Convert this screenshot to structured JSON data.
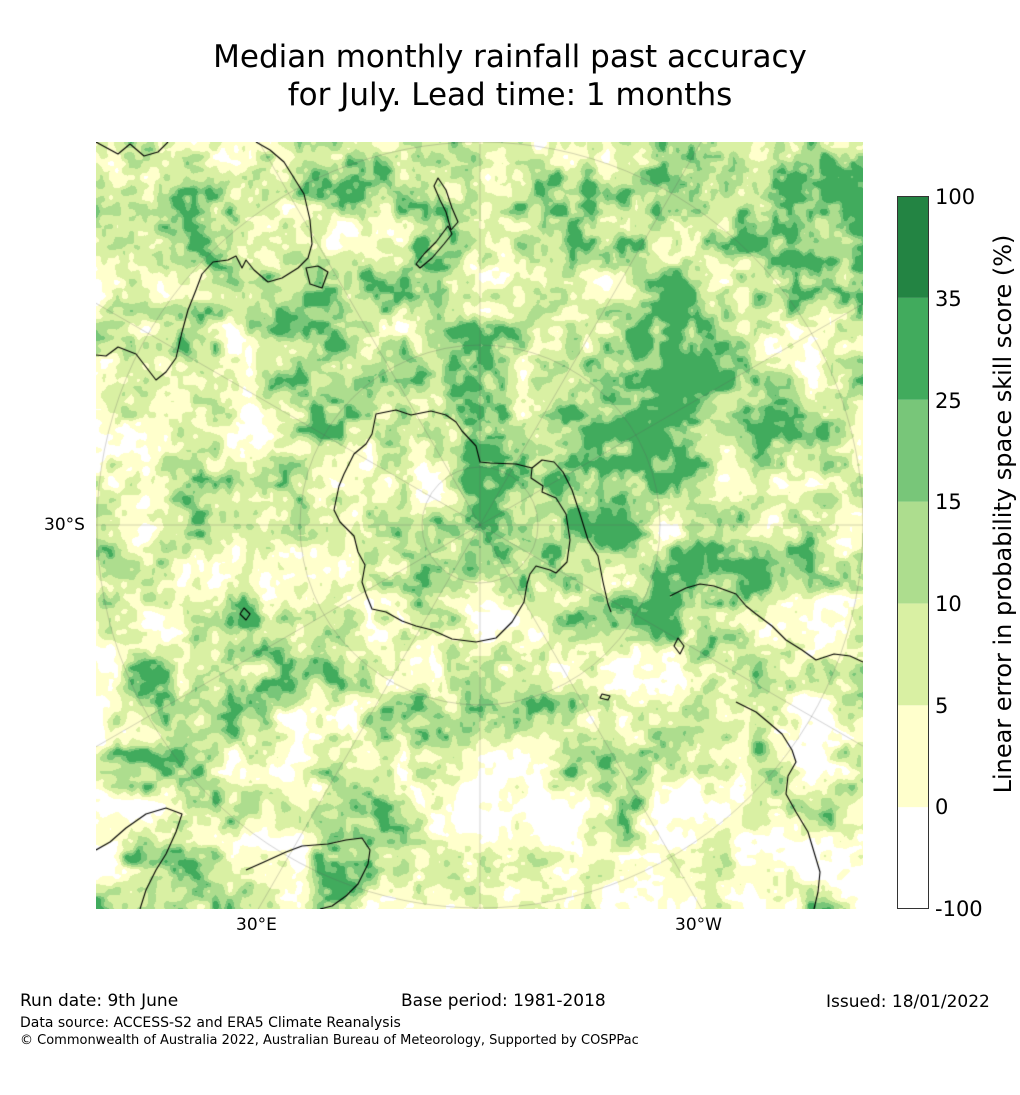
{
  "title": {
    "line1": "Median monthly rainfall past accuracy",
    "line2": "for July. Lead time: 1 months"
  },
  "map": {
    "projection": "south-polar-stereographic",
    "center": "South Pole",
    "latitude_circles_deg": [
      -75,
      -60,
      -45,
      -30
    ],
    "meridian_step_deg": 30,
    "labels": {
      "lat_30s": "30°S",
      "lon_30e": "30°E",
      "lon_30w": "30°W"
    }
  },
  "colorbar": {
    "title": "Linear error in probability space skill score (%)",
    "ticks": [
      "100",
      "35",
      "25",
      "15",
      "10",
      "5",
      "0",
      "-100"
    ],
    "bands": [
      {
        "from": -100,
        "to": 0,
        "color": "#ffffff"
      },
      {
        "from": 0,
        "to": 5,
        "color": "#ffffcc"
      },
      {
        "from": 5,
        "to": 10,
        "color": "#d9f0a3"
      },
      {
        "from": 10,
        "to": 15,
        "color": "#addd8e"
      },
      {
        "from": 15,
        "to": 25,
        "color": "#78c679"
      },
      {
        "from": 25,
        "to": 35,
        "color": "#41ab5d"
      },
      {
        "from": 35,
        "to": 100,
        "color": "#238443"
      }
    ]
  },
  "footer": {
    "run_date": "Run date: 9th June",
    "base_period": "Base period: 1981-2018",
    "issued": "Issued: 18/01/2022",
    "data_source": "Data source: ACCESS-S2 and ERA5 Climate Reanalysis",
    "copyright": "© Commonwealth of Australia 2022, Australian Bureau of Meteorology, Supported by COSPPac"
  }
}
